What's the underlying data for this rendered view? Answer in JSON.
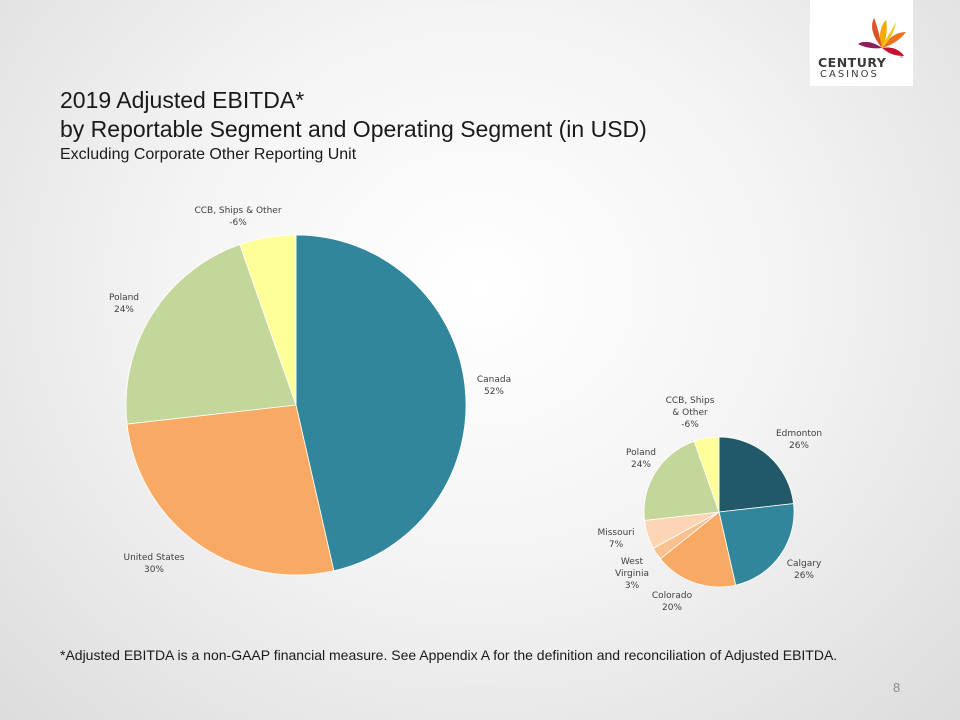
{
  "slide": {
    "title_line1": "2019 Adjusted EBITDA*",
    "title_line2": "by Reportable Segment and Operating Segment (in USD)",
    "subtitle": "Excluding Corporate Other Reporting Unit",
    "footnote": "*Adjusted EBITDA is a non-GAAP financial measure. See Appendix A for the definition and reconciliation of Adjusted EBITDA.",
    "page_number": "8"
  },
  "logo": {
    "line1": "CENTURY",
    "trademark": "™",
    "line2": "CASINOS",
    "icon": "flower-logo-icon"
  },
  "colors": {
    "canada": "#31869b",
    "united_states": "#f8a963",
    "poland": "#c4d79b",
    "ccb": "#ffff99",
    "edmonton": "#215968",
    "calgary": "#31869b",
    "colorado": "#f8a963",
    "west_virginia": "#fac090",
    "missouri": "#fcd5b4"
  },
  "chart_data": [
    {
      "type": "pie",
      "title": "",
      "slices": [
        {
          "label": "Canada",
          "value": 52,
          "value_label": "52%",
          "color": "#31869b"
        },
        {
          "label": "United States",
          "value": 30,
          "value_label": "30%",
          "color": "#f8a963"
        },
        {
          "label": "Poland",
          "value": 24,
          "value_label": "24%",
          "color": "#c4d79b"
        },
        {
          "label": "CCB, Ships & Other",
          "value": 6,
          "value_label": "-6%",
          "color": "#ffff99"
        }
      ]
    },
    {
      "type": "pie",
      "title": "",
      "slices": [
        {
          "label": "Edmonton",
          "value": 26,
          "value_label": "26%",
          "color": "#215968"
        },
        {
          "label": "Calgary",
          "value": 26,
          "value_label": "26%",
          "color": "#31869b"
        },
        {
          "label": "Colorado",
          "value": 20,
          "value_label": "20%",
          "color": "#f8a963"
        },
        {
          "label": "West Virginia",
          "value": 3,
          "value_label": "3%",
          "color": "#fac090"
        },
        {
          "label": "Missouri",
          "value": 7,
          "value_label": "7%",
          "color": "#fcd5b4"
        },
        {
          "label": "Poland",
          "value": 24,
          "value_label": "24%",
          "color": "#c4d79b"
        },
        {
          "label": "CCB, Ships & Other",
          "value": 6,
          "value_label": "-6%",
          "color": "#ffff99"
        }
      ]
    }
  ]
}
